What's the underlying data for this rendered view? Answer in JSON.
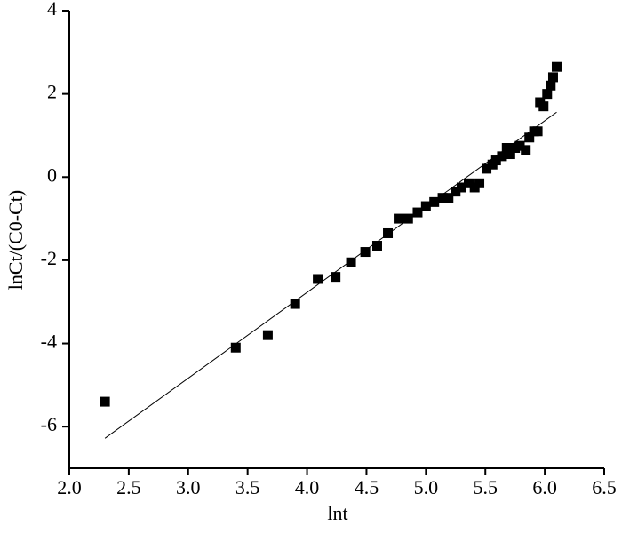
{
  "chart_data": {
    "type": "scatter",
    "xlabel": "lnt",
    "ylabel": "lnCt/(C0-Ct)",
    "xlim": [
      2.0,
      6.5
    ],
    "ylim": [
      -7,
      4
    ],
    "xticks": [
      {
        "value": 2.0,
        "label": "2.0"
      },
      {
        "value": 2.5,
        "label": "2.5"
      },
      {
        "value": 3.0,
        "label": "3.0"
      },
      {
        "value": 3.5,
        "label": "3.5"
      },
      {
        "value": 4.0,
        "label": "4.0"
      },
      {
        "value": 4.5,
        "label": "4.5"
      },
      {
        "value": 5.0,
        "label": "5.0"
      },
      {
        "value": 5.5,
        "label": "5.5"
      },
      {
        "value": 6.0,
        "label": "6.0"
      },
      {
        "value": 6.5,
        "label": "6.5"
      }
    ],
    "yticks": [
      -6,
      -4,
      -2,
      0,
      2,
      4
    ],
    "color": "#000000",
    "x": [
      2.3,
      3.4,
      3.67,
      3.9,
      4.09,
      4.24,
      4.37,
      4.49,
      4.59,
      4.68,
      4.77,
      4.85,
      4.93,
      5.0,
      5.07,
      5.14,
      5.19,
      5.25,
      5.3,
      5.36,
      5.41,
      5.45,
      5.51,
      5.56,
      5.59,
      5.64,
      5.68,
      5.71,
      5.75,
      5.79,
      5.84,
      5.87,
      5.91,
      5.94,
      5.96,
      5.99,
      6.02,
      6.05,
      6.07,
      6.1
    ],
    "values": [
      -5.4,
      -4.1,
      -3.8,
      -3.05,
      -2.45,
      -2.4,
      -2.05,
      -1.8,
      -1.65,
      -1.35,
      -1.0,
      -1.0,
      -0.85,
      -0.7,
      -0.6,
      -0.5,
      -0.5,
      -0.35,
      -0.25,
      -0.15,
      -0.25,
      -0.15,
      0.2,
      0.3,
      0.4,
      0.5,
      0.7,
      0.55,
      0.7,
      0.75,
      0.65,
      0.95,
      1.1,
      1.1,
      1.8,
      1.7,
      2.0,
      2.2,
      2.4,
      2.65
    ],
    "fit": {
      "x": [
        2.3,
        6.1
      ],
      "y": [
        -6.28,
        1.56
      ]
    }
  }
}
